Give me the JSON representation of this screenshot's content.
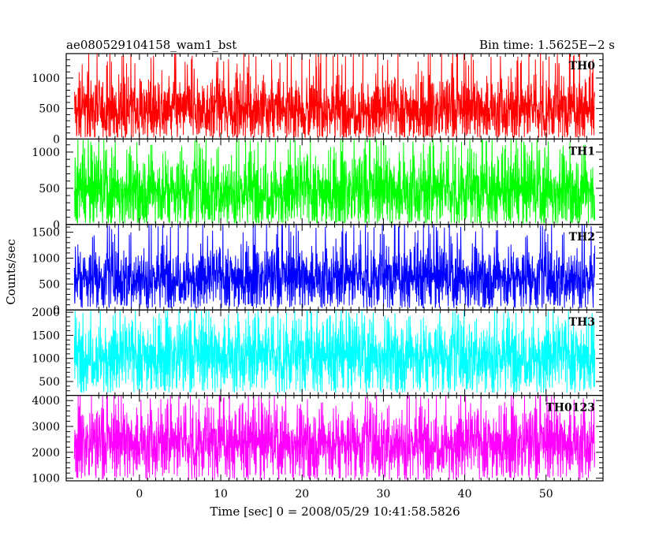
{
  "chart_data": {
    "type": "line",
    "title": "ae080529104158_wam1_bst",
    "bin_time_label": "Bin time: 1.5625E−2 s",
    "xlabel": "Time [sec] 0 = 2008/05/29 10:41:58.5826",
    "ylabel": "Counts/sec",
    "xlim": [
      -9,
      57
    ],
    "x_data_range": [
      -8,
      56
    ],
    "x_ticks": [
      0,
      10,
      20,
      30,
      40,
      50
    ],
    "x_tick_labels": [
      "0",
      "10",
      "20",
      "30",
      "40",
      "50"
    ],
    "panels": [
      {
        "name": "TH0",
        "color": "#ff0000",
        "ylim": [
          0,
          1400
        ],
        "y_ticks": [
          0,
          500,
          1000
        ],
        "y_tick_labels": [
          "0",
          "500",
          "1000"
        ],
        "mean": 500,
        "spread": 260,
        "max": 1400,
        "min": 30
      },
      {
        "name": "TH1",
        "color": "#00ff00",
        "ylim": [
          0,
          1180
        ],
        "y_ticks": [
          0,
          500,
          1000
        ],
        "y_tick_labels": [
          "0",
          "500",
          "1000"
        ],
        "mean": 480,
        "spread": 250,
        "max": 1180,
        "min": 20
      },
      {
        "name": "TH2",
        "color": "#0000ff",
        "ylim": [
          0,
          1650
        ],
        "y_ticks": [
          0,
          500,
          1000,
          1500
        ],
        "y_tick_labels": [
          "0",
          "500",
          "1000",
          "1500"
        ],
        "mean": 640,
        "spread": 290,
        "max": 1650,
        "min": 40
      },
      {
        "name": "TH3",
        "color": "#00ffff",
        "ylim": [
          200,
          2050
        ],
        "y_ticks": [
          500,
          1000,
          1500,
          2000
        ],
        "y_tick_labels": [
          "500",
          "1000",
          "1500",
          "2000"
        ],
        "mean": 1080,
        "spread": 380,
        "max": 2050,
        "min": 260
      },
      {
        "name": "TH0123",
        "color": "#ff00ff",
        "ylim": [
          900,
          4200
        ],
        "y_ticks": [
          1000,
          2000,
          3000,
          4000
        ],
        "y_tick_labels": [
          "1000",
          "2000",
          "3000",
          "4000"
        ],
        "mean": 2400,
        "spread": 650,
        "max": 4200,
        "min": 950
      }
    ]
  }
}
